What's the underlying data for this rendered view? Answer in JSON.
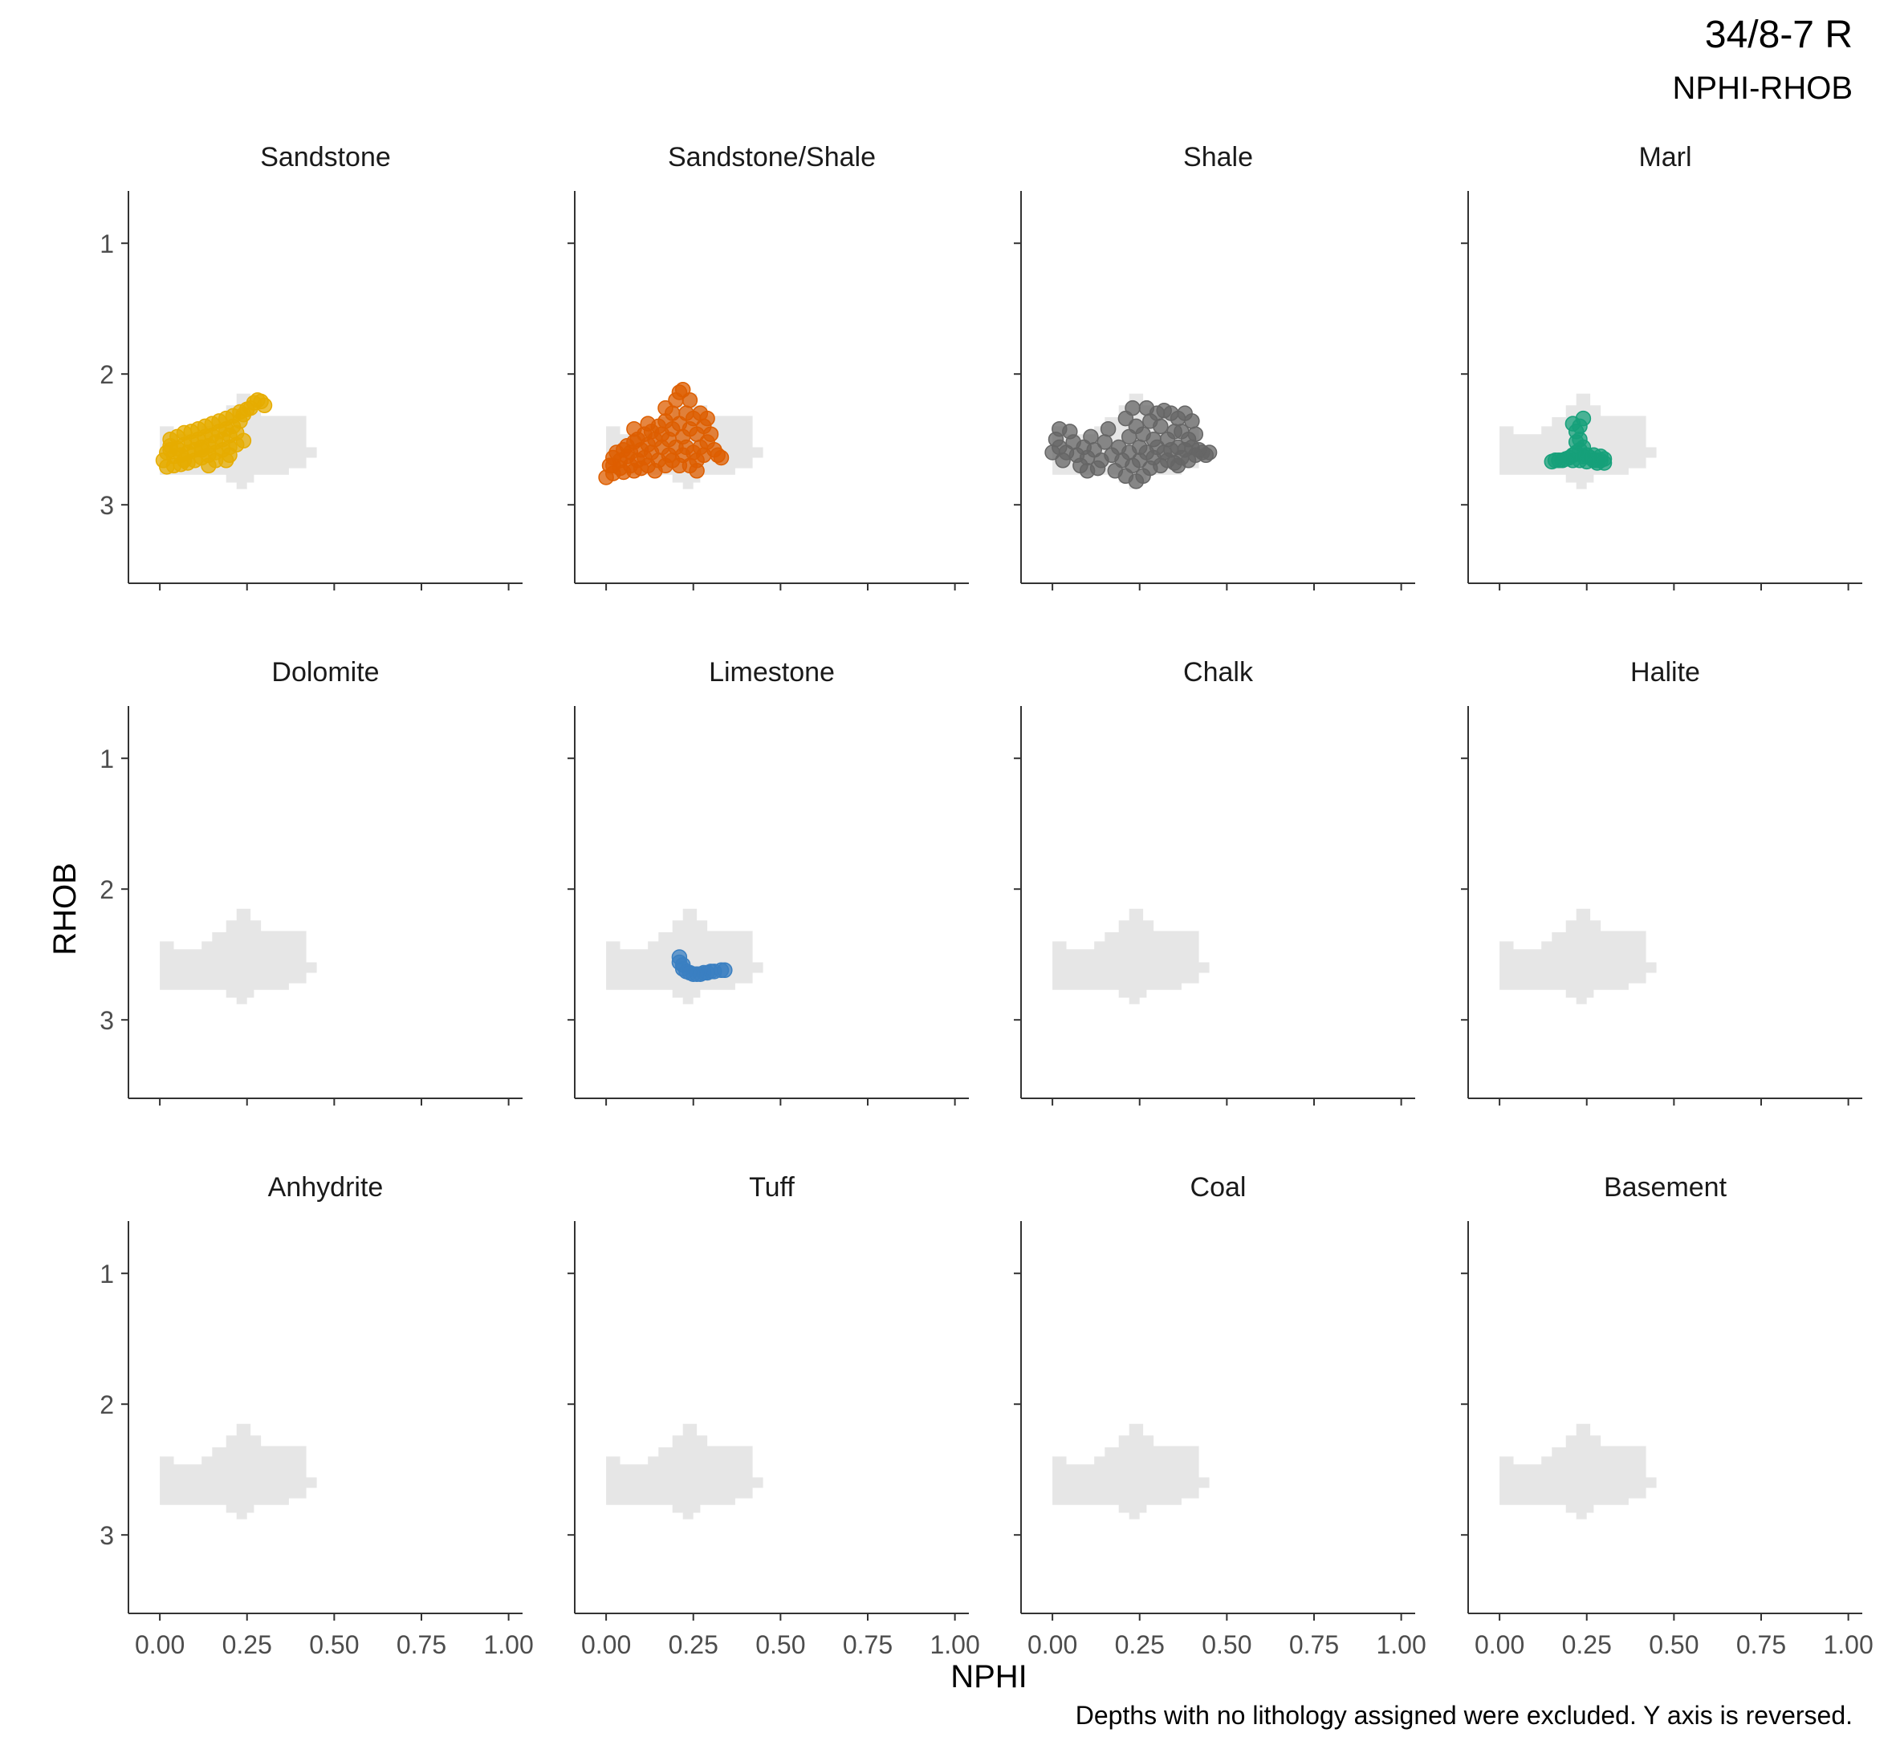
{
  "header": {
    "title": "34/8-7 R",
    "subtitle": "NPHI-RHOB"
  },
  "caption": "Depths with no lithology assigned were excluded. Y axis is reversed.",
  "colors": {
    "background_cloud": "#e6e6e6",
    "axis": "#333333",
    "tick_label": "#4d4d4d"
  },
  "chart_data": {
    "type": "scatter",
    "layout": "facet-grid 3x4, shared axes",
    "xlabel": "NPHI",
    "ylabel": "RHOB",
    "xlim": [
      -0.09,
      1.04
    ],
    "ylim": [
      3.6,
      0.6
    ],
    "y_reversed": true,
    "grid": false,
    "x_ticks": [
      0,
      0.25,
      0.5,
      0.75,
      1
    ],
    "x_tick_labels": [
      "0.00",
      "0.25",
      "0.50",
      "0.75",
      "1.00"
    ],
    "y_ticks": [
      1,
      2,
      3
    ],
    "y_tick_labels": [
      "1",
      "2",
      "3"
    ],
    "background_cloud": {
      "description": "all-lithology NPHI-RHOB envelope shown in every panel",
      "outline": [
        [
          0.0,
          2.77
        ],
        [
          0.0,
          2.4
        ],
        [
          0.04,
          2.4
        ],
        [
          0.04,
          2.46
        ],
        [
          0.12,
          2.46
        ],
        [
          0.12,
          2.4
        ],
        [
          0.15,
          2.4
        ],
        [
          0.15,
          2.33
        ],
        [
          0.19,
          2.33
        ],
        [
          0.19,
          2.24
        ],
        [
          0.22,
          2.24
        ],
        [
          0.22,
          2.15
        ],
        [
          0.26,
          2.15
        ],
        [
          0.26,
          2.24
        ],
        [
          0.29,
          2.24
        ],
        [
          0.29,
          2.32
        ],
        [
          0.42,
          2.32
        ],
        [
          0.42,
          2.56
        ],
        [
          0.45,
          2.56
        ],
        [
          0.45,
          2.64
        ],
        [
          0.42,
          2.64
        ],
        [
          0.42,
          2.72
        ],
        [
          0.37,
          2.72
        ],
        [
          0.37,
          2.77
        ],
        [
          0.27,
          2.77
        ],
        [
          0.27,
          2.83
        ],
        [
          0.25,
          2.83
        ],
        [
          0.25,
          2.88
        ],
        [
          0.22,
          2.88
        ],
        [
          0.22,
          2.83
        ],
        [
          0.19,
          2.83
        ],
        [
          0.19,
          2.77
        ],
        [
          0.0,
          2.77
        ]
      ]
    },
    "facets": [
      {
        "name": "Sandstone",
        "color": "#E6AC00",
        "points": [
          [
            0.01,
            2.66
          ],
          [
            0.02,
            2.71
          ],
          [
            0.02,
            2.6
          ],
          [
            0.03,
            2.55
          ],
          [
            0.03,
            2.5
          ],
          [
            0.04,
            2.7
          ],
          [
            0.04,
            2.63
          ],
          [
            0.05,
            2.57
          ],
          [
            0.05,
            2.48
          ],
          [
            0.06,
            2.69
          ],
          [
            0.06,
            2.62
          ],
          [
            0.07,
            2.54
          ],
          [
            0.07,
            2.45
          ],
          [
            0.08,
            2.68
          ],
          [
            0.08,
            2.6
          ],
          [
            0.09,
            2.52
          ],
          [
            0.09,
            2.44
          ],
          [
            0.1,
            2.66
          ],
          [
            0.1,
            2.58
          ],
          [
            0.11,
            2.5
          ],
          [
            0.11,
            2.42
          ],
          [
            0.12,
            2.64
          ],
          [
            0.12,
            2.56
          ],
          [
            0.13,
            2.48
          ],
          [
            0.13,
            2.4
          ],
          [
            0.14,
            2.62
          ],
          [
            0.14,
            2.55
          ],
          [
            0.15,
            2.47
          ],
          [
            0.15,
            2.38
          ],
          [
            0.16,
            2.6
          ],
          [
            0.16,
            2.52
          ],
          [
            0.17,
            2.44
          ],
          [
            0.17,
            2.36
          ],
          [
            0.18,
            2.58
          ],
          [
            0.18,
            2.5
          ],
          [
            0.19,
            2.42
          ],
          [
            0.19,
            2.34
          ],
          [
            0.2,
            2.56
          ],
          [
            0.2,
            2.47
          ],
          [
            0.21,
            2.4
          ],
          [
            0.21,
            2.32
          ],
          [
            0.22,
            2.54
          ],
          [
            0.22,
            2.45
          ],
          [
            0.23,
            2.36
          ],
          [
            0.23,
            2.29
          ],
          [
            0.24,
            2.51
          ],
          [
            0.24,
            2.31
          ],
          [
            0.25,
            2.27
          ],
          [
            0.26,
            2.26
          ],
          [
            0.27,
            2.22
          ],
          [
            0.28,
            2.2
          ],
          [
            0.29,
            2.21
          ],
          [
            0.3,
            2.24
          ],
          [
            0.19,
            2.66
          ],
          [
            0.14,
            2.7
          ],
          [
            0.07,
            2.66
          ],
          [
            0.03,
            2.58
          ],
          [
            0.12,
            2.58
          ],
          [
            0.2,
            2.62
          ],
          [
            0.16,
            2.66
          ]
        ]
      },
      {
        "name": "Sandstone/Shale",
        "color": "#DD5E00",
        "points": [
          [
            0.0,
            2.79
          ],
          [
            0.01,
            2.7
          ],
          [
            0.02,
            2.64
          ],
          [
            0.02,
            2.76
          ],
          [
            0.03,
            2.6
          ],
          [
            0.04,
            2.72
          ],
          [
            0.04,
            2.66
          ],
          [
            0.05,
            2.58
          ],
          [
            0.05,
            2.75
          ],
          [
            0.06,
            2.63
          ],
          [
            0.06,
            2.55
          ],
          [
            0.07,
            2.7
          ],
          [
            0.07,
            2.6
          ],
          [
            0.08,
            2.52
          ],
          [
            0.08,
            2.74
          ],
          [
            0.09,
            2.66
          ],
          [
            0.09,
            2.5
          ],
          [
            0.1,
            2.58
          ],
          [
            0.1,
            2.72
          ],
          [
            0.11,
            2.46
          ],
          [
            0.11,
            2.64
          ],
          [
            0.12,
            2.54
          ],
          [
            0.12,
            2.7
          ],
          [
            0.13,
            2.44
          ],
          [
            0.13,
            2.6
          ],
          [
            0.14,
            2.5
          ],
          [
            0.14,
            2.74
          ],
          [
            0.15,
            2.4
          ],
          [
            0.15,
            2.66
          ],
          [
            0.16,
            2.56
          ],
          [
            0.16,
            2.46
          ],
          [
            0.17,
            2.7
          ],
          [
            0.17,
            2.36
          ],
          [
            0.18,
            2.62
          ],
          [
            0.18,
            2.5
          ],
          [
            0.19,
            2.3
          ],
          [
            0.19,
            2.42
          ],
          [
            0.19,
            2.66
          ],
          [
            0.2,
            2.2
          ],
          [
            0.2,
            2.56
          ],
          [
            0.21,
            2.14
          ],
          [
            0.21,
            2.38
          ],
          [
            0.21,
            2.7
          ],
          [
            0.22,
            2.12
          ],
          [
            0.22,
            2.48
          ],
          [
            0.22,
            2.62
          ],
          [
            0.23,
            2.3
          ],
          [
            0.23,
            2.56
          ],
          [
            0.24,
            2.42
          ],
          [
            0.24,
            2.7
          ],
          [
            0.25,
            2.34
          ],
          [
            0.25,
            2.6
          ],
          [
            0.26,
            2.46
          ],
          [
            0.26,
            2.66
          ],
          [
            0.27,
            2.3
          ],
          [
            0.27,
            2.56
          ],
          [
            0.28,
            2.4
          ],
          [
            0.28,
            2.62
          ],
          [
            0.29,
            2.34
          ],
          [
            0.29,
            2.52
          ],
          [
            0.3,
            2.46
          ],
          [
            0.31,
            2.58
          ],
          [
            0.32,
            2.62
          ],
          [
            0.33,
            2.64
          ],
          [
            0.17,
            2.26
          ],
          [
            0.24,
            2.2
          ],
          [
            0.12,
            2.38
          ],
          [
            0.08,
            2.42
          ],
          [
            0.02,
            2.7
          ],
          [
            0.26,
            2.74
          ]
        ]
      },
      {
        "name": "Shale",
        "color": "#666666",
        "points": [
          [
            0.0,
            2.6
          ],
          [
            0.01,
            2.5
          ],
          [
            0.02,
            2.56
          ],
          [
            0.03,
            2.66
          ],
          [
            0.04,
            2.6
          ],
          [
            0.05,
            2.44
          ],
          [
            0.06,
            2.52
          ],
          [
            0.07,
            2.62
          ],
          [
            0.08,
            2.7
          ],
          [
            0.09,
            2.56
          ],
          [
            0.1,
            2.64
          ],
          [
            0.11,
            2.48
          ],
          [
            0.12,
            2.58
          ],
          [
            0.13,
            2.72
          ],
          [
            0.14,
            2.66
          ],
          [
            0.15,
            2.52
          ],
          [
            0.16,
            2.42
          ],
          [
            0.17,
            2.62
          ],
          [
            0.18,
            2.74
          ],
          [
            0.19,
            2.56
          ],
          [
            0.2,
            2.66
          ],
          [
            0.21,
            2.34
          ],
          [
            0.21,
            2.78
          ],
          [
            0.22,
            2.48
          ],
          [
            0.22,
            2.6
          ],
          [
            0.23,
            2.26
          ],
          [
            0.23,
            2.7
          ],
          [
            0.24,
            2.82
          ],
          [
            0.24,
            2.4
          ],
          [
            0.25,
            2.56
          ],
          [
            0.25,
            2.66
          ],
          [
            0.26,
            2.78
          ],
          [
            0.26,
            2.46
          ],
          [
            0.27,
            2.26
          ],
          [
            0.27,
            2.6
          ],
          [
            0.28,
            2.72
          ],
          [
            0.28,
            2.36
          ],
          [
            0.29,
            2.5
          ],
          [
            0.29,
            2.64
          ],
          [
            0.3,
            2.3
          ],
          [
            0.3,
            2.56
          ],
          [
            0.31,
            2.7
          ],
          [
            0.31,
            2.4
          ],
          [
            0.32,
            2.28
          ],
          [
            0.32,
            2.6
          ],
          [
            0.33,
            2.5
          ],
          [
            0.33,
            2.66
          ],
          [
            0.34,
            2.3
          ],
          [
            0.34,
            2.58
          ],
          [
            0.35,
            2.44
          ],
          [
            0.35,
            2.68
          ],
          [
            0.36,
            2.34
          ],
          [
            0.36,
            2.56
          ],
          [
            0.37,
            2.64
          ],
          [
            0.37,
            2.44
          ],
          [
            0.38,
            2.3
          ],
          [
            0.38,
            2.58
          ],
          [
            0.39,
            2.5
          ],
          [
            0.39,
            2.66
          ],
          [
            0.4,
            2.36
          ],
          [
            0.4,
            2.56
          ],
          [
            0.41,
            2.62
          ],
          [
            0.41,
            2.46
          ],
          [
            0.42,
            2.58
          ],
          [
            0.43,
            2.6
          ],
          [
            0.44,
            2.62
          ],
          [
            0.45,
            2.6
          ],
          [
            0.02,
            2.42
          ],
          [
            0.1,
            2.74
          ],
          [
            0.36,
            2.7
          ]
        ]
      },
      {
        "name": "Marl",
        "color": "#16A07A",
        "points": [
          [
            0.15,
            2.67
          ],
          [
            0.16,
            2.66
          ],
          [
            0.17,
            2.66
          ],
          [
            0.18,
            2.66
          ],
          [
            0.19,
            2.65
          ],
          [
            0.2,
            2.64
          ],
          [
            0.21,
            2.62
          ],
          [
            0.21,
            2.66
          ],
          [
            0.21,
            2.38
          ],
          [
            0.22,
            2.44
          ],
          [
            0.22,
            2.52
          ],
          [
            0.22,
            2.6
          ],
          [
            0.23,
            2.4
          ],
          [
            0.23,
            2.5
          ],
          [
            0.23,
            2.58
          ],
          [
            0.23,
            2.66
          ],
          [
            0.24,
            2.34
          ],
          [
            0.24,
            2.56
          ],
          [
            0.24,
            2.63
          ],
          [
            0.25,
            2.62
          ],
          [
            0.25,
            2.67
          ],
          [
            0.26,
            2.64
          ],
          [
            0.27,
            2.66
          ],
          [
            0.27,
            2.62
          ],
          [
            0.28,
            2.66
          ],
          [
            0.28,
            2.68
          ],
          [
            0.29,
            2.66
          ],
          [
            0.29,
            2.63
          ],
          [
            0.3,
            2.65
          ],
          [
            0.3,
            2.68
          ]
        ]
      },
      {
        "name": "Dolomite",
        "color": "#000000",
        "points": []
      },
      {
        "name": "Limestone",
        "color": "#3A7FC1",
        "points": [
          [
            0.21,
            2.52
          ],
          [
            0.21,
            2.56
          ],
          [
            0.22,
            2.58
          ],
          [
            0.22,
            2.61
          ],
          [
            0.23,
            2.63
          ],
          [
            0.24,
            2.64
          ],
          [
            0.25,
            2.65
          ],
          [
            0.26,
            2.65
          ],
          [
            0.27,
            2.65
          ],
          [
            0.28,
            2.64
          ],
          [
            0.29,
            2.64
          ],
          [
            0.3,
            2.63
          ],
          [
            0.31,
            2.63
          ],
          [
            0.33,
            2.62
          ],
          [
            0.34,
            2.62
          ]
        ]
      },
      {
        "name": "Chalk",
        "color": "#000000",
        "points": []
      },
      {
        "name": "Halite",
        "color": "#000000",
        "points": []
      },
      {
        "name": "Anhydrite",
        "color": "#000000",
        "points": []
      },
      {
        "name": "Tuff",
        "color": "#000000",
        "points": []
      },
      {
        "name": "Coal",
        "color": "#000000",
        "points": []
      },
      {
        "name": "Basement",
        "color": "#000000",
        "points": []
      }
    ]
  }
}
